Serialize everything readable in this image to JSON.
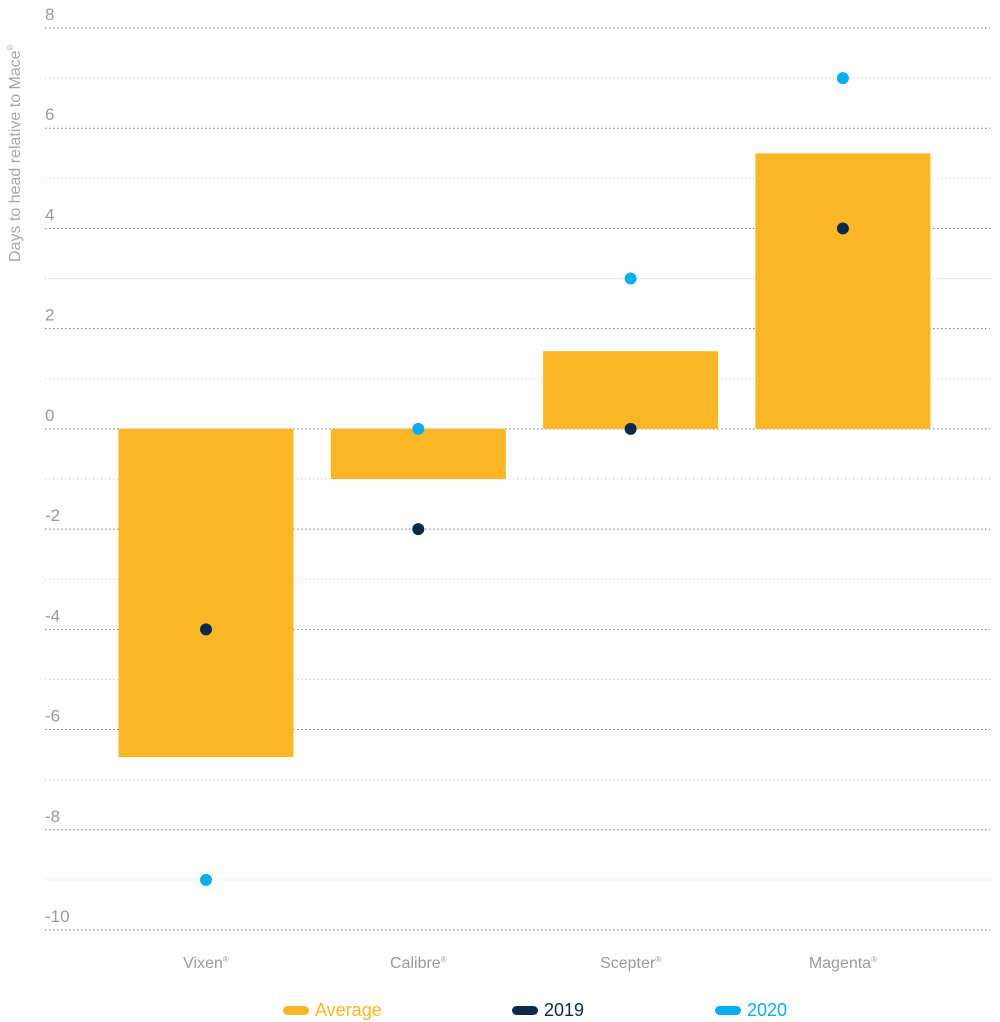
{
  "chart_data": {
    "type": "bar",
    "ylabel": "Days to head relative to Mace",
    "ylabel_mark": "®",
    "categories": [
      "Vixen",
      "Calibre",
      "Scepter",
      "Magenta"
    ],
    "category_mark": "®",
    "ylim": [
      -10,
      8
    ],
    "yticks": [
      8,
      6,
      4,
      2,
      0,
      -2,
      -4,
      -6,
      -8,
      -10
    ],
    "grid": true,
    "legend_position": "bottom",
    "series": [
      {
        "name": "Average",
        "kind": "bar",
        "color": "#FBB626",
        "values": [
          -6.55,
          -1.0,
          1.55,
          5.5
        ]
      },
      {
        "name": "2019",
        "kind": "point",
        "color": "#0B2A4A",
        "values": [
          -4,
          -2,
          0,
          4
        ]
      },
      {
        "name": "2020",
        "kind": "point",
        "color": "#0AADEF",
        "values": [
          -9,
          0,
          3,
          7
        ]
      }
    ]
  }
}
